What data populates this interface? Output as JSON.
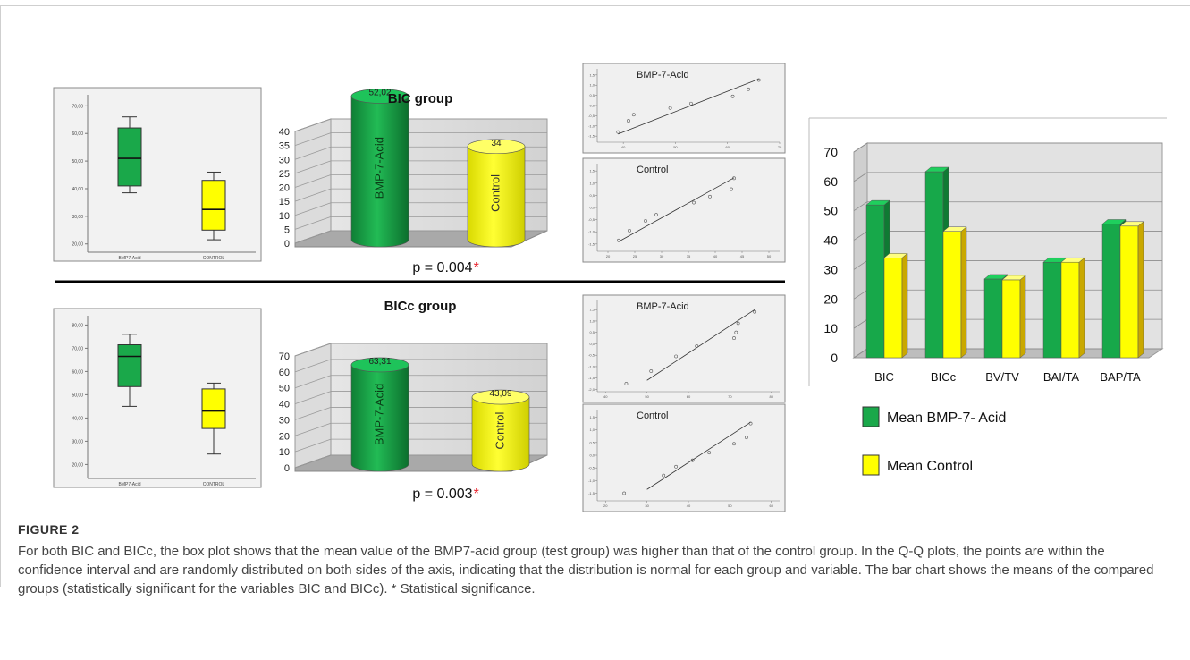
{
  "figure": {
    "label": "FIGURE 2",
    "caption": "For both BIC and BICc, the box plot shows that the mean value of the BMP7-acid group (test group) was higher than that of the control group. In the Q-Q plots, the points are within the confidence interval and are randomly distributed on both sides of the axis, indicating that the distribution is normal for each group and variable. The bar chart shows the means of the compared groups (statistically significant for the variables BIC and BICc). * Statistical significance."
  },
  "colors": {
    "green": "#1aa84a",
    "yellow": "#ffff00",
    "asterisk": "#e8202a"
  },
  "chart_data": [
    {
      "id": "box-bic",
      "type": "box",
      "categories": [
        "BMP7-Acid",
        "CONTROL"
      ],
      "y_ticks": [
        "20,00",
        "30,00",
        "40,00",
        "50,00",
        "60,00",
        "70,00"
      ],
      "ylim": [
        17,
        74
      ],
      "boxes": [
        {
          "whisker_low": 38.5,
          "q1": 41,
          "median": 51,
          "q3": 62,
          "whisker_high": 66
        },
        {
          "whisker_low": 21.5,
          "q1": 25,
          "median": 32.5,
          "q3": 43,
          "whisker_high": 46
        }
      ]
    },
    {
      "id": "cyl-bic",
      "type": "bar",
      "title": "BIC group",
      "categories": [
        "BMP-7-Acid",
        "Control"
      ],
      "values": [
        52.02,
        34
      ],
      "value_labels": [
        "52,02",
        "34"
      ],
      "y_ticks": [
        "0",
        "5",
        "10",
        "15",
        "20",
        "25",
        "30",
        "35",
        "40"
      ],
      "ylim": [
        0,
        40
      ],
      "pvalue_text": "p = 0.004",
      "asterisk": "*"
    },
    {
      "id": "qq-bic-bmp",
      "type": "scatter",
      "title": "BMP-7-Acid",
      "x_ticks": [
        "40",
        "50",
        "60",
        "70"
      ],
      "y_ticks": [
        "-1,5",
        "-1,0",
        "-0,5",
        "0,0",
        "0,5",
        "1,0",
        "1,5"
      ],
      "xlim": [
        35,
        70
      ],
      "ylim": [
        -1.8,
        1.8
      ],
      "points": [
        [
          39,
          -1.3
        ],
        [
          41,
          -0.75
        ],
        [
          42,
          -0.45
        ],
        [
          49,
          -0.12
        ],
        [
          53,
          0.1
        ],
        [
          61,
          0.45
        ],
        [
          64,
          0.8
        ],
        [
          66,
          1.25
        ]
      ],
      "line": [
        [
          39,
          -1.4
        ],
        [
          66,
          1.3
        ]
      ]
    },
    {
      "id": "qq-bic-ctl",
      "type": "scatter",
      "title": "Control",
      "x_ticks": [
        "20",
        "25",
        "30",
        "35",
        "40",
        "45",
        "50"
      ],
      "y_ticks": [
        "-1,5",
        "-1,0",
        "-0,5",
        "0,0",
        "0,5",
        "1,0",
        "1,5"
      ],
      "xlim": [
        18,
        52
      ],
      "ylim": [
        -1.8,
        1.8
      ],
      "points": [
        [
          22,
          -1.35
        ],
        [
          24,
          -0.95
        ],
        [
          27,
          -0.55
        ],
        [
          29,
          -0.3
        ],
        [
          36,
          0.2
        ],
        [
          39,
          0.45
        ],
        [
          43,
          0.75
        ],
        [
          43.5,
          1.2
        ]
      ],
      "line": [
        [
          22,
          -1.4
        ],
        [
          43.5,
          1.22
        ]
      ]
    },
    {
      "id": "box-bicc",
      "type": "box",
      "categories": [
        "BMP7-Acid",
        "CONTROL"
      ],
      "y_ticks": [
        "20,00",
        "30,00",
        "40,00",
        "50,00",
        "60,00",
        "70,00",
        "80,00"
      ],
      "ylim": [
        14,
        84
      ],
      "boxes": [
        {
          "whisker_low": 45,
          "q1": 53.5,
          "median": 66.5,
          "q3": 71.5,
          "whisker_high": 76
        },
        {
          "whisker_low": 24.5,
          "q1": 35.5,
          "median": 43,
          "q3": 52.5,
          "whisker_high": 55
        }
      ]
    },
    {
      "id": "cyl-bicc",
      "type": "bar",
      "title": "BICc group",
      "categories": [
        "BMP-7-Acid",
        "Control"
      ],
      "values": [
        63.31,
        43.09
      ],
      "value_labels": [
        "63,31",
        "43,09"
      ],
      "y_ticks": [
        "0",
        "10",
        "20",
        "30",
        "40",
        "50",
        "60",
        "70"
      ],
      "ylim": [
        0,
        70
      ],
      "pvalue_text": "p = 0.003",
      "asterisk": "*"
    },
    {
      "id": "qq-bicc-bmp",
      "type": "scatter",
      "title": "BMP-7-Acid",
      "x_ticks": [
        "40",
        "50",
        "60",
        "70",
        "80"
      ],
      "y_ticks": [
        "-2,0",
        "-1,5",
        "-1,0",
        "-0,5",
        "0,0",
        "0,5",
        "1,0",
        "1,5"
      ],
      "xlim": [
        38,
        82
      ],
      "ylim": [
        -2.1,
        1.9
      ],
      "points": [
        [
          45,
          -1.75
        ],
        [
          51,
          -1.2
        ],
        [
          57,
          -0.55
        ],
        [
          62,
          -0.1
        ],
        [
          71,
          0.25
        ],
        [
          71.5,
          0.5
        ],
        [
          72,
          0.9
        ],
        [
          76,
          1.4
        ]
      ],
      "line": [
        [
          50,
          -1.6
        ],
        [
          76,
          1.5
        ]
      ]
    },
    {
      "id": "qq-bicc-ctl",
      "type": "scatter",
      "title": "Control",
      "x_ticks": [
        "20",
        "30",
        "40",
        "50",
        "60"
      ],
      "y_ticks": [
        "-1,5",
        "-1,0",
        "-0,5",
        "0,0",
        "0,5",
        "1,0",
        "1,5"
      ],
      "xlim": [
        18,
        62
      ],
      "ylim": [
        -1.8,
        1.8
      ],
      "points": [
        [
          24.5,
          -1.5
        ],
        [
          34,
          -0.8
        ],
        [
          37,
          -0.45
        ],
        [
          41,
          -0.2
        ],
        [
          45,
          0.1
        ],
        [
          51,
          0.45
        ],
        [
          54,
          0.7
        ],
        [
          55,
          1.25
        ]
      ],
      "line": [
        [
          30,
          -1.35
        ],
        [
          55,
          1.3
        ]
      ]
    },
    {
      "id": "bars-means",
      "type": "bar",
      "categories": [
        "BIC",
        "BICc",
        "BV/TV",
        "BAI/TA",
        "BAP/TA"
      ],
      "series": [
        {
          "name": "Mean BMP-7- Acid",
          "values": [
            52,
            63.3,
            26.8,
            32.5,
            45.5
          ]
        },
        {
          "name": "Mean Control",
          "values": [
            34,
            43,
            26.5,
            32.5,
            44.8
          ]
        }
      ],
      "y_ticks": [
        "0",
        "10",
        "20",
        "30",
        "40",
        "50",
        "60",
        "70"
      ],
      "ylim": [
        0,
        70
      ],
      "grid": true,
      "legend_position": "bottom"
    }
  ]
}
